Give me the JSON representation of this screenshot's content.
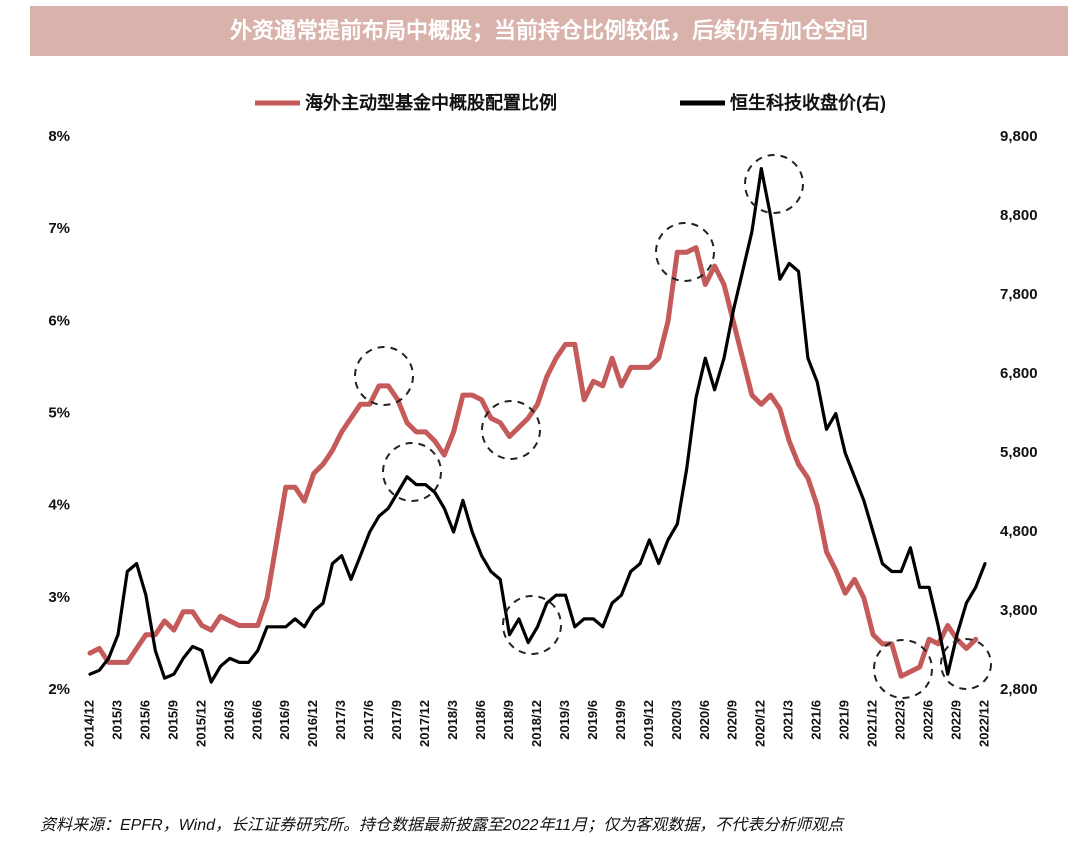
{
  "chart_data": {
    "type": "line",
    "title": "外资通常提前布局中概股；当前持仓比例较低，后续仍有加仓空间",
    "source": "资料来源：EPFR，Wind，长江证券研究所。持仓数据最新披露至2022年11月；仅为客观数据，不代表分析师观点",
    "categories": [
      "2014/12",
      null,
      null,
      "2015/3",
      null,
      null,
      "2015/6",
      null,
      null,
      "2015/9",
      null,
      null,
      "2015/12",
      null,
      null,
      "2016/3",
      null,
      null,
      "2016/6",
      null,
      null,
      "2016/9",
      null,
      null,
      "2016/12",
      null,
      null,
      "2017/3",
      null,
      null,
      "2017/6",
      null,
      null,
      "2017/9",
      null,
      null,
      "2017/12",
      null,
      null,
      "2018/3",
      null,
      null,
      "2018/6",
      null,
      null,
      "2018/9",
      null,
      null,
      "2018/12",
      null,
      null,
      "2019/3",
      null,
      null,
      "2019/6",
      null,
      null,
      "2019/9",
      null,
      null,
      "2019/12",
      null,
      null,
      "2020/3",
      null,
      null,
      "2020/6",
      null,
      null,
      "2020/9",
      null,
      null,
      "2020/12",
      null,
      null,
      "2021/3",
      null,
      null,
      "2021/6",
      null,
      null,
      "2021/9",
      null,
      null,
      "2021/12",
      null,
      null,
      "2022/3",
      null,
      null,
      "2022/6",
      null,
      null,
      "2022/9",
      null,
      null,
      "2022/12"
    ],
    "series": [
      {
        "name": "海外主动型基金中概股配置比例",
        "color": "#c45a5a",
        "axis": "y",
        "values": [
          2.4,
          2.45,
          2.3,
          2.3,
          2.3,
          2.45,
          2.6,
          2.6,
          2.75,
          2.65,
          2.85,
          2.85,
          2.7,
          2.65,
          2.8,
          2.75,
          2.7,
          2.7,
          2.7,
          3.0,
          3.6,
          4.2,
          4.2,
          4.05,
          4.35,
          4.45,
          4.6,
          4.8,
          4.95,
          5.1,
          5.1,
          5.3,
          5.3,
          5.15,
          4.9,
          4.8,
          4.8,
          4.7,
          4.55,
          4.8,
          5.2,
          5.2,
          5.15,
          4.95,
          4.9,
          4.75,
          4.85,
          4.95,
          5.1,
          5.4,
          5.6,
          5.75,
          5.75,
          5.15,
          5.35,
          5.3,
          5.6,
          5.3,
          5.5,
          5.5,
          5.5,
          5.6,
          6.0,
          6.75,
          6.75,
          6.8,
          6.4,
          6.6,
          6.4,
          6.0,
          5.6,
          5.2,
          5.1,
          5.2,
          5.05,
          4.7,
          4.45,
          4.3,
          4.0,
          3.5,
          3.3,
          3.05,
          3.2,
          3.0,
          2.6,
          2.5,
          2.5,
          2.15,
          2.2,
          2.25,
          2.55,
          2.5,
          2.7,
          2.55,
          2.45,
          2.55,
          null
        ]
      },
      {
        "name": "恒生科技收盘价(右)",
        "color": "#000000",
        "axis": "y2",
        "values": [
          3000,
          3050,
          3200,
          3500,
          4300,
          4400,
          4000,
          3300,
          2950,
          3000,
          3200,
          3350,
          3300,
          2900,
          3100,
          3200,
          3150,
          3150,
          3300,
          3600,
          3600,
          3600,
          3700,
          3600,
          3800,
          3900,
          4400,
          4500,
          4200,
          4500,
          4800,
          5000,
          5100,
          5300,
          5500,
          5400,
          5400,
          5300,
          5100,
          4800,
          5200,
          4800,
          4500,
          4300,
          4200,
          3500,
          3700,
          3400,
          3600,
          3900,
          4000,
          4000,
          3600,
          3700,
          3700,
          3600,
          3900,
          4000,
          4300,
          4400,
          4700,
          4400,
          4700,
          4900,
          5600,
          6500,
          7000,
          6600,
          7000,
          7600,
          8100,
          8600,
          9400,
          8800,
          8000,
          8200,
          8100,
          7000,
          6700,
          6100,
          6300,
          5800,
          5500,
          5200,
          4800,
          4400,
          4300,
          4300,
          4600,
          4100,
          4100,
          3600,
          3000,
          3500,
          3900,
          4100,
          4400
        ]
      }
    ],
    "ylim": [
      2,
      8
    ],
    "yticks": [
      {
        "value": 2,
        "label": "2%"
      },
      {
        "value": 3,
        "label": "3%"
      },
      {
        "value": 4,
        "label": "4%"
      },
      {
        "value": 5,
        "label": "5%"
      },
      {
        "value": 6,
        "label": "6%"
      },
      {
        "value": 7,
        "label": "7%"
      },
      {
        "value": 8,
        "label": "8%"
      }
    ],
    "y2lim": [
      2800,
      9800
    ],
    "y2ticks": [
      {
        "value": 2800,
        "label": "2,800"
      },
      {
        "value": 3800,
        "label": "3,800"
      },
      {
        "value": 4800,
        "label": "4,800"
      },
      {
        "value": 5800,
        "label": "5,800"
      },
      {
        "value": 6800,
        "label": "6,800"
      },
      {
        "value": 7800,
        "label": "7,800"
      },
      {
        "value": 8800,
        "label": "8,800"
      },
      {
        "value": 9800,
        "label": "9,800"
      }
    ],
    "grid": false,
    "legend": "top"
  }
}
